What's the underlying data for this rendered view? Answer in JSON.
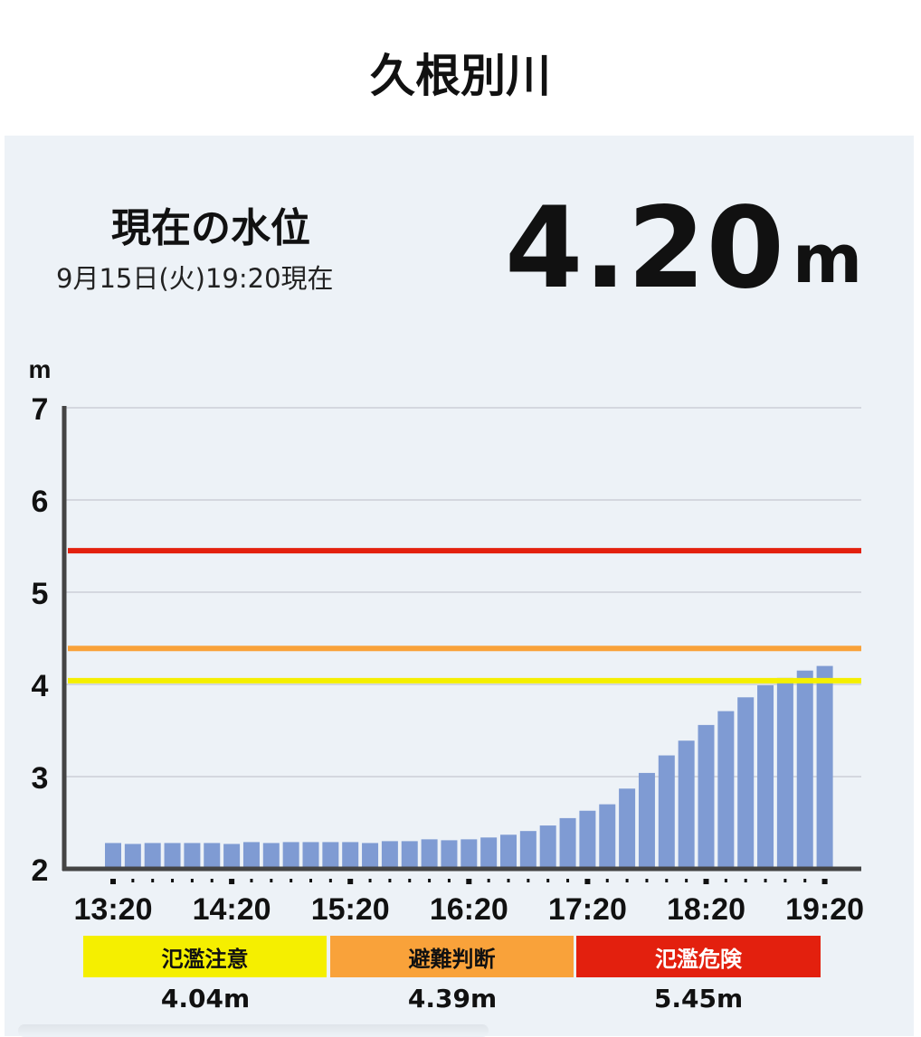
{
  "title": "久根別川",
  "current": {
    "label": "現在の水位",
    "datetime": "9月15日(火)19:20現在",
    "value": "4.20",
    "unit": "m"
  },
  "chart_data": {
    "type": "bar",
    "ylabel": "m",
    "ylim": [
      2,
      7
    ],
    "yticks": [
      "2",
      "3",
      "4",
      "5",
      "6",
      "7"
    ],
    "xtick_labels": [
      "13:20",
      "14:20",
      "15:20",
      "16:20",
      "17:20",
      "18:20",
      "19:20"
    ],
    "grid": true,
    "bar_color": "#7f9bd3",
    "values": [
      2.28,
      2.27,
      2.28,
      2.28,
      2.28,
      2.28,
      2.27,
      2.29,
      2.28,
      2.29,
      2.29,
      2.29,
      2.29,
      2.28,
      2.3,
      2.3,
      2.32,
      2.31,
      2.32,
      2.34,
      2.37,
      2.41,
      2.47,
      2.55,
      2.63,
      2.7,
      2.87,
      3.04,
      3.23,
      3.39,
      3.56,
      3.71,
      3.86,
      3.99,
      4.07,
      4.15,
      4.2
    ],
    "thresholds": [
      {
        "name": "氾濫注意",
        "value": 4.04,
        "label": "4.04m",
        "color": "#f5ef00"
      },
      {
        "name": "避難判断",
        "value": 4.39,
        "label": "4.39m",
        "color": "#f9a23a"
      },
      {
        "name": "氾濫危険",
        "value": 5.45,
        "label": "5.45m",
        "color": "#e3200e"
      }
    ]
  }
}
